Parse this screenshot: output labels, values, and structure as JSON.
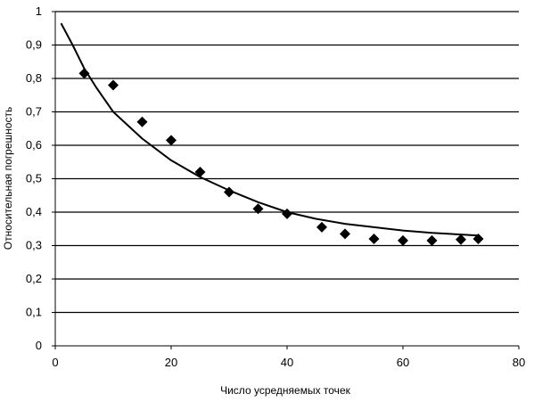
{
  "chart_data": {
    "type": "scatter",
    "title": "",
    "xlabel": "Число усредняемых точек",
    "ylabel": "Относительная погрешность",
    "xlim": [
      0,
      80
    ],
    "ylim": [
      0,
      1
    ],
    "x_ticks": [
      "0",
      "20",
      "40",
      "60",
      "80"
    ],
    "x_tick_values": [
      0,
      20,
      40,
      60,
      80
    ],
    "y_ticks": [
      "0",
      "0,1",
      "0,2",
      "0,3",
      "0,4",
      "0,5",
      "0,6",
      "0,7",
      "0,8",
      "0,9",
      "1"
    ],
    "y_tick_values": [
      0,
      0.1,
      0.2,
      0.3,
      0.4,
      0.5,
      0.6,
      0.7,
      0.8,
      0.9,
      1
    ],
    "grid": "horizontal",
    "legend": "none",
    "series": [
      {
        "type": "scatter",
        "marker": "diamond",
        "color": "#000000",
        "x": [
          5,
          10,
          15,
          20,
          25,
          30,
          35,
          40,
          46,
          50,
          55,
          60,
          65,
          70,
          73
        ],
        "y": [
          0.815,
          0.78,
          0.67,
          0.615,
          0.52,
          0.46,
          0.41,
          0.395,
          0.355,
          0.335,
          0.32,
          0.315,
          0.315,
          0.318,
          0.32
        ]
      },
      {
        "type": "line",
        "color": "#000000",
        "x": [
          1,
          3,
          5,
          7,
          10,
          15,
          20,
          25,
          30,
          35,
          40,
          45,
          50,
          55,
          60,
          65,
          70,
          73
        ],
        "y": [
          0.965,
          0.9,
          0.83,
          0.775,
          0.7,
          0.62,
          0.555,
          0.505,
          0.465,
          0.43,
          0.4,
          0.38,
          0.365,
          0.355,
          0.345,
          0.338,
          0.333,
          0.33
        ]
      }
    ]
  }
}
